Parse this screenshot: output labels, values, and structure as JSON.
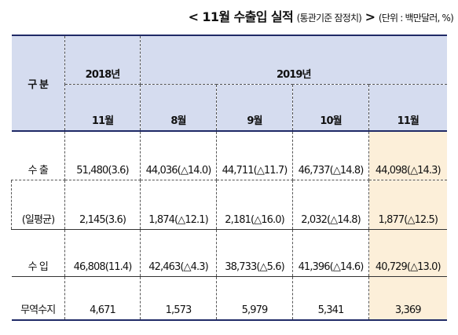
{
  "caption": {
    "main": "< 11월 수출입 실적",
    "basis": "(통관기준 잠정치)",
    "arrow": ">",
    "unit": "(단위 : 백만달러, %)"
  },
  "header": {
    "category": "구 분",
    "year_2018": "2018년",
    "year_2019": "2019년",
    "months": [
      "11월",
      "8월",
      "9월",
      "10월",
      "11월"
    ]
  },
  "rows": [
    {
      "label": "수 출",
      "cells": [
        "51,480(3.6)",
        "44,036(△14.0)",
        "44,711(△11.7)",
        "46,737(△14.8)",
        "44,098(△14.3)"
      ]
    },
    {
      "label": "(일평균)",
      "cells": [
        "2,145(3.6)",
        "1,874(△12.1)",
        "2,181(△16.0)",
        "2,032(△14.8)",
        "1,877(△12.5)"
      ]
    },
    {
      "label": "수 입",
      "cells": [
        "46,808(11.4)",
        "42,463(△4.3)",
        "38,733(△5.6)",
        "41,396(△14.6)",
        "40,729(△13.0)"
      ]
    },
    {
      "label": "무역수지",
      "cells": [
        "4,671",
        "1,573",
        "5,979",
        "5,341",
        "3,369"
      ]
    }
  ],
  "colors": {
    "header_bg": "#d5dcef",
    "highlight_bg": "#fcefd9",
    "rule": "#1f2a66"
  }
}
